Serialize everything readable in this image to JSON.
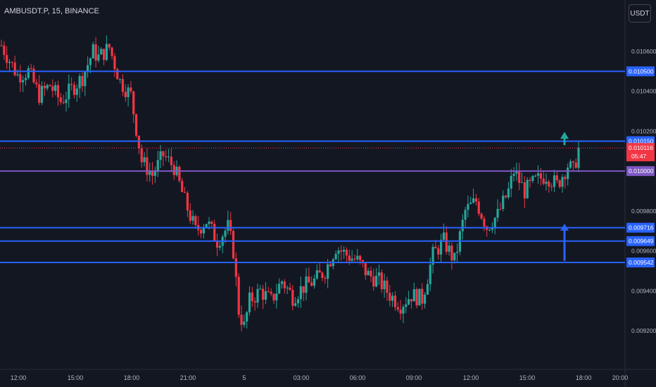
{
  "header": {
    "title": "AMBUSDT.P, 15, BINANCE",
    "unit": "USDT"
  },
  "colors": {
    "up": "#26a69a",
    "down": "#f23645",
    "level": "#2962ff",
    "pivot": "#7e57c2",
    "price": "#f23645",
    "background": "#131722",
    "text": "#b2b5be"
  },
  "chart_data": {
    "type": "candlestick",
    "title": "AMBUSDT.P, 15, BINANCE",
    "x_ticks": [
      "12:00",
      "15:00",
      "18:00",
      "21:00",
      "5",
      "03:00",
      "06:00",
      "09:00",
      "12:00",
      "15:00",
      "18:00",
      "20:00"
    ],
    "y_ticks": [
      "0.010600",
      "0.010400",
      "0.010200",
      "0.009800",
      "0.009600",
      "0.009400",
      "0.009200"
    ],
    "ylim": [
      0.00914,
      0.01077
    ],
    "grid": false,
    "horizontal_levels": [
      {
        "label": "0.010500",
        "value": 0.0105,
        "color": "#2962ff"
      },
      {
        "label": "0.010150",
        "value": 0.01015,
        "color": "#2962ff"
      },
      {
        "label": "0.010000",
        "value": 0.01,
        "color": "#7e57c2"
      },
      {
        "label": "0.009716",
        "value": 0.009716,
        "color": "#2962ff"
      },
      {
        "label": "0.009649",
        "value": 0.009649,
        "color": "#2962ff"
      },
      {
        "label": "0.009542",
        "value": 0.009542,
        "color": "#2962ff"
      }
    ],
    "current_price": {
      "value": 0.010116,
      "label": "0.010116",
      "countdown": "05:47"
    },
    "annotations": [
      {
        "type": "arrow-up",
        "color": "#26a69a",
        "at_time": "~17:00",
        "from": 0.01013,
        "to": 0.01019
      },
      {
        "type": "arrow-up",
        "color": "#2962ff",
        "at_time": "~17:00",
        "from": 0.00955,
        "to": 0.00973
      }
    ],
    "keypoints": [
      [
        0,
        0.01063
      ],
      [
        6,
        0.01048
      ],
      [
        10,
        0.0105
      ],
      [
        14,
        0.01038
      ],
      [
        18,
        0.01043
      ],
      [
        22,
        0.01035
      ],
      [
        26,
        0.01041
      ],
      [
        30,
        0.01047
      ],
      [
        34,
        0.0106
      ],
      [
        36,
        0.01057
      ],
      [
        40,
        0.01062
      ],
      [
        44,
        0.01045
      ],
      [
        48,
        0.01038
      ],
      [
        52,
        0.01005
      ],
      [
        56,
        0.00998
      ],
      [
        60,
        0.01008
      ],
      [
        64,
        0.01002
      ],
      [
        68,
        0.00985
      ],
      [
        72,
        0.0097
      ],
      [
        76,
        0.00975
      ],
      [
        80,
        0.00965
      ],
      [
        84,
        0.00972
      ],
      [
        86,
        0.0096
      ],
      [
        88,
        0.0093
      ],
      [
        90,
        0.00922
      ],
      [
        92,
        0.00935
      ],
      [
        96,
        0.0094
      ],
      [
        100,
        0.00935
      ],
      [
        104,
        0.00945
      ],
      [
        108,
        0.00937
      ],
      [
        112,
        0.00942
      ],
      [
        116,
        0.00945
      ],
      [
        120,
        0.0095
      ],
      [
        124,
        0.00962
      ],
      [
        128,
        0.00958
      ],
      [
        132,
        0.00955
      ],
      [
        136,
        0.00948
      ],
      [
        140,
        0.00945
      ],
      [
        144,
        0.00938
      ],
      [
        148,
        0.00933
      ],
      [
        152,
        0.00938
      ],
      [
        156,
        0.00936
      ],
      [
        160,
        0.00958
      ],
      [
        164,
        0.00965
      ],
      [
        168,
        0.00955
      ],
      [
        172,
        0.0098
      ],
      [
        176,
        0.00985
      ],
      [
        180,
        0.00972
      ],
      [
        184,
        0.00978
      ],
      [
        188,
        0.0099
      ],
      [
        190,
        0.01
      ],
      [
        194,
        0.0099
      ],
      [
        198,
        0.00995
      ],
      [
        202,
        0.00998
      ],
      [
        206,
        0.00993
      ],
      [
        210,
        0.01003
      ],
      [
        212,
        0.01
      ],
      [
        214,
        0.01011
      ]
    ],
    "candle_count": 215
  }
}
